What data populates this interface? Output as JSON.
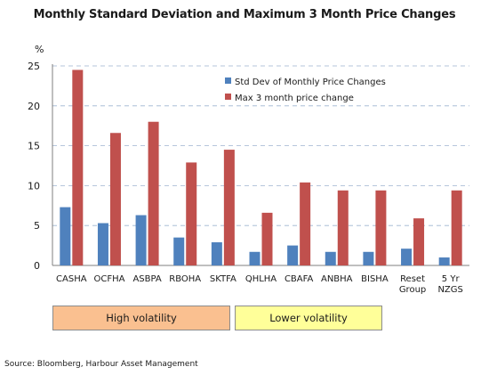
{
  "chart_data": {
    "type": "bar",
    "title": "Monthly Standard Deviation and Maximum 3 Month Price Changes",
    "ylabel": "%",
    "ylim": [
      0,
      25
    ],
    "yticks": [
      0,
      5,
      10,
      15,
      20,
      25
    ],
    "grid": true,
    "legend_position": "top-right",
    "categories": [
      "CASHA",
      "OCFHA",
      "ASBPA",
      "RBOHA",
      "SKTFA",
      "QHLHA",
      "CBAFA",
      "ANBHA",
      "BISHA",
      "Reset Group",
      "5 Yr NZGS"
    ],
    "category_lines": [
      [
        "CASHA"
      ],
      [
        "OCFHA"
      ],
      [
        "ASBPA"
      ],
      [
        "RBOHA"
      ],
      [
        "SKTFA"
      ],
      [
        "QHLHA"
      ],
      [
        "CBAFA"
      ],
      [
        "ANBHA"
      ],
      [
        "BISHA"
      ],
      [
        "Reset",
        "Group"
      ],
      [
        "5 Yr",
        "NZGS"
      ]
    ],
    "series": [
      {
        "name": "Std Dev of Monthly Price Changes",
        "color": "#4f81bd",
        "values": [
          7.3,
          5.3,
          6.3,
          3.5,
          2.9,
          1.7,
          2.5,
          1.7,
          1.7,
          2.1,
          1.0
        ]
      },
      {
        "name": "Max 3 month price change",
        "color": "#c0504d",
        "values": [
          24.5,
          16.6,
          18.0,
          12.9,
          14.5,
          6.6,
          10.4,
          9.4,
          9.4,
          5.9,
          9.4
        ]
      }
    ]
  },
  "groups": [
    {
      "label": "High volatility",
      "color": "#fac090"
    },
    {
      "label": "Lower volatility",
      "color": "#ffff99"
    }
  ],
  "source": "Source: Bloomberg, Harbour Asset Management"
}
